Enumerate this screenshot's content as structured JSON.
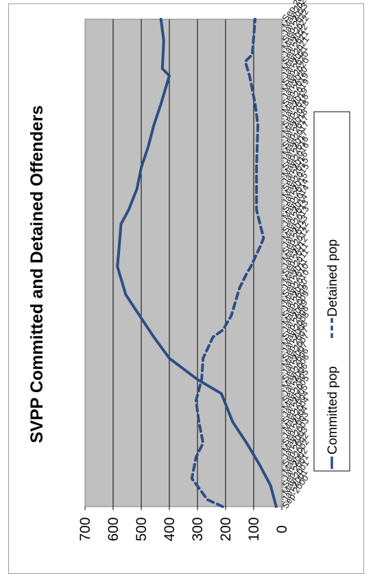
{
  "chart_data": {
    "type": "line",
    "title": "SVPP Committed and Detained Offenders",
    "xlabel": "",
    "ylabel": "",
    "ylim": [
      0,
      700
    ],
    "yticks": [
      0,
      100,
      200,
      300,
      400,
      500,
      600,
      700
    ],
    "grid": true,
    "plot_background": "#c0c0c0",
    "legend_position": "bottom",
    "first_category_label": "Sep-2000",
    "last_category_label": "Sep-2023",
    "category_count": 277,
    "tick_labels": [
      "Sep-2000",
      "Jan-2001",
      "May-2001",
      "Sep-2001",
      "Jan-2002",
      "May-2002",
      "Sep-2002",
      "Jan-2003",
      "May-2003",
      "Sep-2003",
      "Jan-2004",
      "May-2004",
      "Sep-2004",
      "Jan-2005",
      "May-2005",
      "Sep-2005",
      "Jan-2006",
      "May-2006",
      "Sep-2006",
      "Jan-2007",
      "May-2007",
      "Sep-2007",
      "Jan-2008",
      "May-2008",
      "Sep-2008",
      "Jan-2009",
      "May-2009",
      "Sep-2009",
      "Jan-2010",
      "May-2010",
      "Sep-2010",
      "Jan-2011",
      "May-2011",
      "Sep-2011",
      "Jan-2012",
      "May-2012",
      "Sep-2012",
      "Jan-2013",
      "May-2013",
      "Sep-2013",
      "Jan-2014",
      "May-2014",
      "Sep-2014",
      "Jan-2015",
      "May-2015",
      "Sep-2015",
      "Jan-2016",
      "May-2016",
      "Sep-2016",
      "Jan-2017",
      "May-2017",
      "Sep-2017",
      "Jan-2018",
      "May-2018",
      "Sep-2018",
      "Jan-2019",
      "May-2019",
      "Sep-2019",
      "Jan-2020",
      "May-2020",
      "Sep-2020",
      "Jan-2021",
      "May-2021",
      "Sep-2021",
      "Jan-2022",
      "May-2022",
      "Sep-2022",
      "Jan-2023",
      "May-2023",
      "Sep-2023"
    ],
    "series": [
      {
        "name": "Committed pop",
        "color": "#2d4e84",
        "style": "solid",
        "keypoints": [
          {
            "x": "Sep-2000",
            "y": 20
          },
          {
            "x": "Sep-2001",
            "y": 40
          },
          {
            "x": "Sep-2002",
            "y": 80
          },
          {
            "x": "Sep-2003",
            "y": 125
          },
          {
            "x": "Sep-2004",
            "y": 175
          },
          {
            "x": "Jan-2006",
            "y": 215
          },
          {
            "x": "Sep-2006",
            "y": 300
          },
          {
            "x": "Sep-2007",
            "y": 400
          },
          {
            "x": "Sep-2008",
            "y": 455
          },
          {
            "x": "Sep-2009",
            "y": 505
          },
          {
            "x": "Sep-2010",
            "y": 555
          },
          {
            "x": "Jan-2012",
            "y": 585
          },
          {
            "x": "Jan-2013",
            "y": 578
          },
          {
            "x": "Jan-2014",
            "y": 572
          },
          {
            "x": "Sep-2014",
            "y": 545
          },
          {
            "x": "Sep-2015",
            "y": 515
          },
          {
            "x": "Sep-2016",
            "y": 500
          },
          {
            "x": "Sep-2017",
            "y": 475
          },
          {
            "x": "Sep-2018",
            "y": 455
          },
          {
            "x": "Sep-2019",
            "y": 430
          },
          {
            "x": "Jan-2021",
            "y": 400
          },
          {
            "x": "May-2021",
            "y": 425
          },
          {
            "x": "Sep-2022",
            "y": 420
          },
          {
            "x": "Sep-2023",
            "y": 430
          }
        ]
      },
      {
        "name": "Detained pop",
        "color": "#2d4e84",
        "style": "dashed",
        "keypoints": [
          {
            "x": "Sep-2000",
            "y": 210
          },
          {
            "x": "Jan-2001",
            "y": 265
          },
          {
            "x": "Jan-2002",
            "y": 320
          },
          {
            "x": "Jan-2003",
            "y": 305
          },
          {
            "x": "Sep-2003",
            "y": 280
          },
          {
            "x": "Sep-2004",
            "y": 295
          },
          {
            "x": "Sep-2005",
            "y": 305
          },
          {
            "x": "Sep-2006",
            "y": 285
          },
          {
            "x": "Sep-2007",
            "y": 280
          },
          {
            "x": "Sep-2008",
            "y": 245
          },
          {
            "x": "Jan-2009",
            "y": 210
          },
          {
            "x": "Sep-2009",
            "y": 180
          },
          {
            "x": "Jan-2011",
            "y": 150
          },
          {
            "x": "Sep-2011",
            "y": 125
          },
          {
            "x": "Jan-2012",
            "y": 110
          },
          {
            "x": "Jan-2013",
            "y": 75
          },
          {
            "x": "May-2013",
            "y": 65
          },
          {
            "x": "Sep-2014",
            "y": 90
          },
          {
            "x": "Sep-2016",
            "y": 90
          },
          {
            "x": "Sep-2018",
            "y": 85
          },
          {
            "x": "Sep-2019",
            "y": 95
          },
          {
            "x": "Jan-2021",
            "y": 115
          },
          {
            "x": "Sep-2021",
            "y": 130
          },
          {
            "x": "Jan-2022",
            "y": 105
          },
          {
            "x": "Sep-2023",
            "y": 95
          }
        ]
      }
    ]
  }
}
